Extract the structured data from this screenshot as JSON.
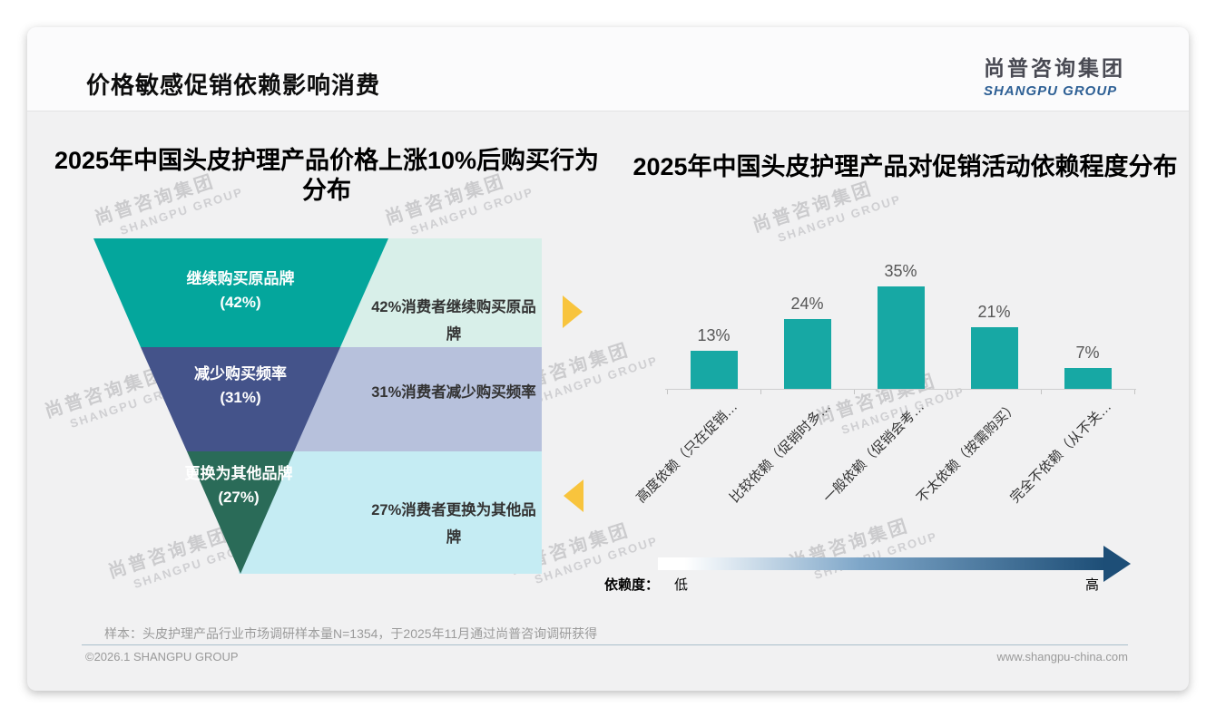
{
  "page": {
    "title": "价格敏感促销依赖影响消费",
    "logo": {
      "cn": "尚普咨询集团",
      "en": "SHANGPU GROUP"
    },
    "watermark": {
      "cn": "尚普咨询集团",
      "en": "SHANGPU GROUP"
    },
    "footnote": "样本：头皮护理产品行业市场调研样本量N=1354，于2025年11月通过尚普咨询调研获得",
    "copyright": "©2026.1 SHANGPU GROUP",
    "website": "www.shangpu-china.com",
    "colors": {
      "accent_yellow": "#f8c43d",
      "gradient_mid": "#7fa7c9",
      "gradient_dark": "#1d4e77"
    }
  },
  "chart_data": [
    {
      "type": "funnel",
      "title": "2025年中国头皮护理产品价格上涨10%后购买行为分布",
      "tiers": [
        {
          "label": "继续购买原品牌",
          "value_label": "(42%)",
          "value": 42,
          "note": "42%消费者继续购买原品牌",
          "color": "#04a69c",
          "note_bg": "#d8efe9"
        },
        {
          "label": "减少购买频率",
          "value_label": "(31%)",
          "value": 31,
          "note": "31%消费者减少购买频率",
          "color": "#44538a",
          "note_bg": "#b7c1dc"
        },
        {
          "label": "更换为其他品牌",
          "value_label": "(27%)",
          "value": 27,
          "note": "27%消费者更换为其他品牌",
          "color": "#2a6b58",
          "note_bg": "#c5ecf3"
        }
      ]
    },
    {
      "type": "bar",
      "title": "2025年中国头皮护理产品对促销活动依赖程度分布",
      "categories": [
        "高度依赖（只在促销…",
        "比较依赖（促销时多…",
        "一般依赖（促销会考…",
        "不太依赖（按需购买）",
        "完全不依赖（从不关…"
      ],
      "values": [
        13,
        24,
        35,
        21,
        7
      ],
      "value_labels": [
        "13%",
        "24%",
        "35%",
        "21%",
        "7%"
      ],
      "ylim": [
        0,
        40
      ],
      "bar_color": "#17a8a4",
      "legend": {
        "label": "依赖度：",
        "low": "低",
        "high": "高"
      }
    }
  ]
}
